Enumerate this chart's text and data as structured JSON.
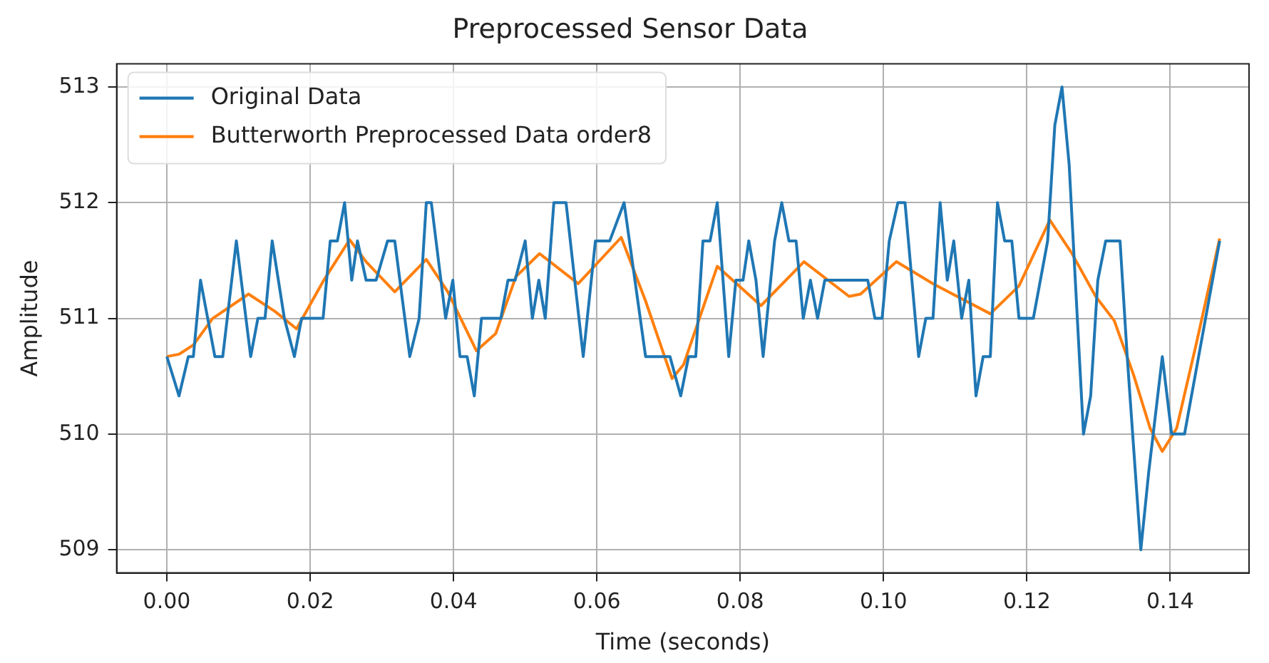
{
  "chart_data": {
    "type": "line",
    "title": "Preprocessed Sensor Data",
    "xlabel": "Time (seconds)",
    "ylabel": "Amplitude",
    "xlim": [
      -0.007,
      0.151
    ],
    "xticks": [
      {
        "value": 0,
        "label": "0.00"
      },
      {
        "value": 0.02,
        "label": "0.02"
      },
      {
        "value": 0.04,
        "label": "0.04"
      },
      {
        "value": 0.06,
        "label": "0.06"
      },
      {
        "value": 0.08,
        "label": "0.08"
      },
      {
        "value": 0.1,
        "label": "0.10"
      },
      {
        "value": 0.12,
        "label": "0.12"
      },
      {
        "value": 0.14,
        "label": "0.14"
      }
    ],
    "ylim": [
      508.8,
      513.2
    ],
    "yticks": [
      509,
      510,
      511,
      512,
      513
    ],
    "grid": true,
    "legend": "top left",
    "marker": "none",
    "line_style": "solid",
    "series": [
      {
        "name": "Original Data",
        "color": "#1f77b4",
        "x": [
          0,
          0.0017,
          0.003,
          0.0037,
          0.0047,
          0.0067,
          0.0078,
          0.0097,
          0.0117,
          0.0127,
          0.0137,
          0.0147,
          0.0164,
          0.0178,
          0.0188,
          0.0218,
          0.0228,
          0.0238,
          0.0248,
          0.0258,
          0.0266,
          0.0278,
          0.0292,
          0.0308,
          0.0318,
          0.0339,
          0.0352,
          0.0362,
          0.0369,
          0.0389,
          0.0399,
          0.0409,
          0.0419,
          0.0429,
          0.0439,
          0.0466,
          0.0476,
          0.0486,
          0.05,
          0.051,
          0.0519,
          0.0528,
          0.054,
          0.0557,
          0.0581,
          0.0598,
          0.0618,
          0.0638,
          0.0668,
          0.0702,
          0.0717,
          0.0728,
          0.0738,
          0.0748,
          0.0758,
          0.0768,
          0.0784,
          0.0794,
          0.0804,
          0.0812,
          0.0822,
          0.0832,
          0.0848,
          0.0858,
          0.0868,
          0.0878,
          0.0888,
          0.0898,
          0.0908,
          0.0918,
          0.0968,
          0.0978,
          0.0988,
          0.0998,
          0.1008,
          0.102,
          0.103,
          0.1049,
          0.1059,
          0.1069,
          0.1079,
          0.1089,
          0.1098,
          0.1109,
          0.1119,
          0.1129,
          0.1139,
          0.1149,
          0.1159,
          0.1169,
          0.1179,
          0.1189,
          0.1209,
          0.1229,
          0.1239,
          0.1249,
          0.1259,
          0.1279,
          0.1289,
          0.1299,
          0.131,
          0.133,
          0.134,
          0.1359,
          0.137,
          0.1389,
          0.1402,
          0.142,
          0.1469
        ],
        "values": [
          510.67,
          510.33,
          510.67,
          510.67,
          511.33,
          510.67,
          510.67,
          511.67,
          510.67,
          511,
          511,
          511.67,
          511,
          510.67,
          511,
          511,
          511.67,
          511.67,
          512,
          511.33,
          511.67,
          511.33,
          511.33,
          511.67,
          511.67,
          510.67,
          511,
          512,
          512,
          511,
          511.33,
          510.67,
          510.67,
          510.33,
          511,
          511,
          511.33,
          511.33,
          511.67,
          511,
          511.33,
          511,
          512,
          512,
          510.67,
          511.67,
          511.67,
          512,
          510.67,
          510.67,
          510.33,
          510.67,
          510.67,
          511.67,
          511.67,
          512,
          510.67,
          511.33,
          511.33,
          511.67,
          511.33,
          510.67,
          511.67,
          512,
          511.67,
          511.67,
          511,
          511.33,
          511,
          511.33,
          511.33,
          511.33,
          511,
          511,
          511.67,
          512,
          512,
          510.67,
          511,
          511,
          512,
          511.33,
          511.67,
          511,
          511.33,
          510.33,
          510.67,
          510.67,
          512,
          511.67,
          511.67,
          511,
          511,
          511.67,
          512.67,
          513,
          512.33,
          510,
          510.33,
          511.33,
          511.67,
          511.67,
          510.67,
          509,
          509.67,
          510.67,
          510,
          510,
          511.67
        ]
      },
      {
        "name": "Butterworth Preprocessed Data order8",
        "color": "#ff7f0e",
        "x": [
          0,
          0.0017,
          0.0037,
          0.0064,
          0.0114,
          0.0151,
          0.0181,
          0.0218,
          0.0255,
          0.0278,
          0.0318,
          0.0362,
          0.0392,
          0.0432,
          0.0459,
          0.0487,
          0.052,
          0.0574,
          0.0634,
          0.0668,
          0.0705,
          0.0721,
          0.0768,
          0.0829,
          0.0889,
          0.0952,
          0.0968,
          0.1018,
          0.1069,
          0.1149,
          0.1189,
          0.1232,
          0.1262,
          0.1296,
          0.1322,
          0.1349,
          0.1372,
          0.1389,
          0.1409,
          0.1436,
          0.1469
        ],
        "values": [
          510.67,
          510.69,
          510.77,
          511,
          511.21,
          511.06,
          510.91,
          511.32,
          511.68,
          511.49,
          511.23,
          511.51,
          511.23,
          510.72,
          510.87,
          511.36,
          511.56,
          511.3,
          511.7,
          511.15,
          510.48,
          510.6,
          511.45,
          511.11,
          511.49,
          511.19,
          511.21,
          511.49,
          511.3,
          511.04,
          511.28,
          511.85,
          511.57,
          511.19,
          510.98,
          510.51,
          510.05,
          509.85,
          510.05,
          510.77,
          511.69
        ]
      }
    ]
  }
}
